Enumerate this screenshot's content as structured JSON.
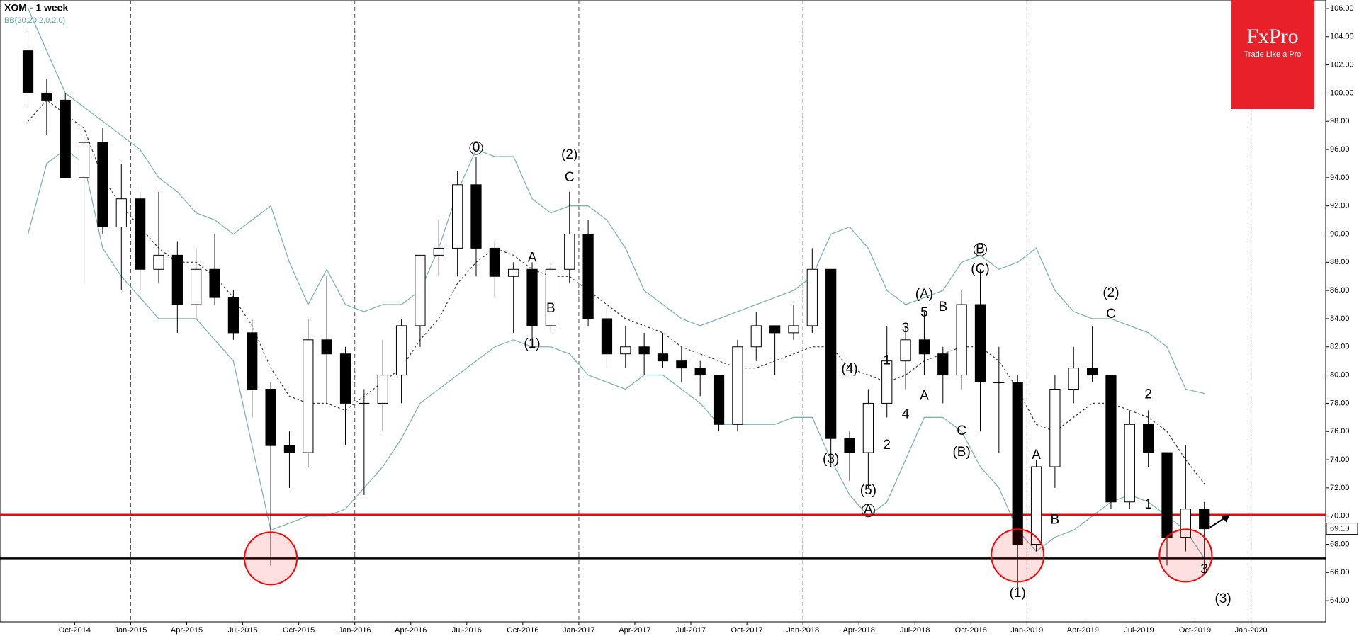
{
  "chart_data": {
    "type": "candlestick",
    "title": "XOM  - 1 week",
    "indicator_label": "BB(20,20,2,0,2,0)",
    "logo": {
      "brand": "FxPro",
      "tagline": "Trade Like a Pro"
    },
    "x": [
      "2014-07",
      "2014-08",
      "2014-09",
      "2014-10",
      "2014-11",
      "2014-12",
      "2015-01",
      "2015-02",
      "2015-03",
      "2015-04",
      "2015-05",
      "2015-06",
      "2015-07",
      "2015-08",
      "2015-09",
      "2015-10",
      "2015-11",
      "2015-12",
      "2016-01",
      "2016-02",
      "2016-03",
      "2016-04",
      "2016-05",
      "2016-06",
      "2016-07",
      "2016-08",
      "2016-09",
      "2016-10",
      "2016-11",
      "2016-12",
      "2017-01",
      "2017-02",
      "2017-03",
      "2017-04",
      "2017-05",
      "2017-06",
      "2017-07",
      "2017-08",
      "2017-09",
      "2017-10",
      "2017-11",
      "2017-12",
      "2018-01",
      "2018-02",
      "2018-03",
      "2018-04",
      "2018-05",
      "2018-06",
      "2018-07",
      "2018-08",
      "2018-09",
      "2018-10",
      "2018-11",
      "2018-12",
      "2019-01",
      "2019-02",
      "2019-03",
      "2019-04",
      "2019-05",
      "2019-06",
      "2019-07",
      "2019-08",
      "2019-09",
      "2019-10"
    ],
    "open": [
      103,
      100,
      99.5,
      94,
      96.5,
      90.5,
      92.5,
      87.5,
      88.5,
      85,
      87.5,
      85.5,
      83,
      79,
      75,
      74.5,
      82.5,
      81.5,
      78,
      78,
      80,
      83.5,
      88.5,
      89,
      93.5,
      89,
      87,
      87.5,
      83.5,
      87.5,
      90,
      84,
      81.5,
      82,
      81.5,
      81,
      80.5,
      80,
      76.5,
      82,
      83.5,
      83,
      83.5,
      87.5,
      75.5,
      74.5,
      78,
      81,
      82.5,
      81.5,
      80,
      85,
      79.5,
      79.5,
      68,
      73.5,
      79,
      80.5,
      80,
      71,
      76.5,
      74.5,
      68.5,
      70.5
    ],
    "high": [
      104.5,
      101,
      100,
      97,
      97.5,
      95,
      93,
      93,
      89.5,
      89,
      90,
      86,
      84,
      79.5,
      76,
      84,
      87,
      82,
      79,
      82.5,
      84,
      88.5,
      91,
      94.5,
      95.5,
      89.5,
      88,
      88,
      88,
      93,
      91,
      85,
      83.5,
      83,
      83,
      82,
      81,
      80,
      82.5,
      84.5,
      83.5,
      85,
      89,
      87.5,
      76,
      79,
      83.5,
      83.5,
      84.5,
      82,
      86,
      87.5,
      82,
      80,
      74,
      80,
      82,
      83.5,
      80,
      77.5,
      77.5,
      74.5,
      75,
      71
    ],
    "low": [
      99,
      97,
      94,
      86.5,
      90,
      86,
      86,
      86.5,
      83,
      84,
      85,
      82.5,
      77,
      66.5,
      72,
      73.5,
      78,
      75,
      71.5,
      76,
      78,
      82,
      87,
      87,
      87,
      85.5,
      83,
      82.5,
      83,
      86.5,
      83.5,
      80.5,
      80.5,
      80,
      80.5,
      79.5,
      78.5,
      76,
      76,
      81,
      80,
      82.5,
      83,
      73.5,
      72.5,
      72,
      77,
      79,
      80,
      78,
      79,
      76,
      74.5,
      64.5,
      67.5,
      72,
      78,
      79.5,
      70.5,
      70.5,
      73.5,
      66.5,
      67.5,
      66
    ],
    "close": [
      100,
      99.5,
      94,
      96.5,
      90.5,
      92.5,
      87.5,
      88.5,
      85,
      87.5,
      85.5,
      83,
      79,
      75,
      74.5,
      82.5,
      81.5,
      78,
      78,
      80,
      83.5,
      88.5,
      89,
      93.5,
      89,
      87,
      87.5,
      83.5,
      87.5,
      90,
      84,
      81.5,
      82,
      81.5,
      81,
      80.5,
      80,
      76.5,
      82,
      83.5,
      83,
      83.5,
      87.5,
      75.5,
      74.5,
      78,
      81,
      82.5,
      81.5,
      80,
      85,
      79.5,
      79.5,
      68,
      73.5,
      79,
      80.5,
      80,
      71,
      76.5,
      74.5,
      68.5,
      70.5,
      69.1
    ],
    "up_color": "#ffffff",
    "down_color": "#000000",
    "bands": {
      "color": "#7fb3b3",
      "upper": [
        106,
        103,
        100,
        99,
        98,
        97,
        96,
        94,
        93,
        91.5,
        91,
        90,
        91,
        92,
        88,
        85,
        87.5,
        85,
        84.5,
        85,
        85,
        86,
        89,
        93,
        96,
        95.5,
        95.5,
        92.5,
        91.5,
        92,
        92,
        91,
        89,
        86,
        85,
        84,
        83.5,
        84,
        84.5,
        85,
        85.5,
        86,
        87,
        90,
        90.5,
        89,
        86,
        85,
        85.5,
        86,
        88,
        88.5,
        87.5,
        88,
        89,
        86,
        84.5,
        84,
        84,
        83.5,
        83,
        82,
        79,
        78.7
      ],
      "middle": [
        98,
        99.5,
        98.5,
        97.5,
        94,
        92,
        90.5,
        89,
        88,
        88,
        87,
        85.5,
        83.5,
        80.5,
        78.5,
        78,
        78,
        77.5,
        78.5,
        79.5,
        80.5,
        82.5,
        84,
        86.5,
        88,
        89,
        88.5,
        87.5,
        87,
        87,
        86,
        85,
        84,
        83.5,
        83,
        82,
        81.5,
        81,
        80.5,
        80.5,
        81,
        81.5,
        82,
        82,
        80.5,
        80,
        79.5,
        80,
        81,
        81.5,
        82,
        82,
        81,
        79,
        76.5,
        76,
        77,
        78,
        78,
        77.5,
        77,
        76,
        74,
        72.3
      ],
      "lower": [
        90,
        95,
        96,
        95,
        89,
        87,
        85.5,
        84,
        84,
        84,
        82.5,
        81,
        75,
        69,
        69.5,
        70,
        70,
        70.5,
        72,
        73.5,
        75.5,
        78,
        79,
        80,
        81,
        82,
        82.5,
        82,
        82,
        81.5,
        80,
        79.5,
        79,
        80,
        80,
        79,
        78,
        76.5,
        76.5,
        76.5,
        76.5,
        77,
        77,
        74,
        71.5,
        70,
        71,
        74,
        77,
        77,
        76,
        73.5,
        72,
        69,
        67.5,
        68.5,
        69,
        70,
        71,
        71.5,
        71,
        70,
        69,
        67
      ]
    },
    "levels": [
      {
        "value": 70.1,
        "color": "#ff0000"
      },
      {
        "value": 67,
        "color": "#000000"
      }
    ],
    "highlights": [
      {
        "x": "2015-08",
        "y": 67
      },
      {
        "x": "2018-12",
        "y": 67.2
      },
      {
        "x": "2019-09",
        "y": 67.2
      }
    ],
    "last_price": {
      "value": 69.1,
      "label": "69.10"
    },
    "annotations": [
      {
        "text": "0",
        "x": "2016-07",
        "y": 96.1,
        "circled": true
      },
      {
        "text": "(2)",
        "x": "2016-12",
        "y": 95.6
      },
      {
        "text": "C",
        "x": "2016-12",
        "y": 94
      },
      {
        "text": "A",
        "x": "2016-10",
        "y": 88.3
      },
      {
        "text": "B",
        "x": "2016-11",
        "y": 84.7
      },
      {
        "text": "(1)",
        "x": "2016-10",
        "y": 82.2
      },
      {
        "text": "(3)",
        "x": "2018-02",
        "y": 74
      },
      {
        "text": "(4)",
        "x": "2018-03",
        "y": 80.4
      },
      {
        "text": "(5)",
        "x": "2018-04",
        "y": 71.8
      },
      {
        "text": "A",
        "x": "2018-04",
        "y": 70.4,
        "circled": true
      },
      {
        "text": "1",
        "x": "2018-05",
        "y": 81
      },
      {
        "text": "2",
        "x": "2018-05",
        "y": 75
      },
      {
        "text": "3",
        "x": "2018-06",
        "y": 83.3
      },
      {
        "text": "4",
        "x": "2018-06",
        "y": 77.2
      },
      {
        "text": "5",
        "x": "2018-07",
        "y": 84.4
      },
      {
        "text": "(A)",
        "x": "2018-07",
        "y": 85.7
      },
      {
        "text": "A",
        "x": "2018-07",
        "y": 78.5
      },
      {
        "text": "B",
        "x": "2018-08",
        "y": 84.8
      },
      {
        "text": "C",
        "x": "2018-09",
        "y": 76
      },
      {
        "text": "(B)",
        "x": "2018-09",
        "y": 74.5
      },
      {
        "text": "B",
        "x": "2018-10",
        "y": 88.9,
        "circled": true
      },
      {
        "text": "(C)",
        "x": "2018-10",
        "y": 87.5
      },
      {
        "text": "A",
        "x": "2019-01",
        "y": 74.3
      },
      {
        "text": "B",
        "x": "2019-02",
        "y": 69.7
      },
      {
        "text": "(1)",
        "x": "2018-12",
        "y": 64.5
      },
      {
        "text": "(2)",
        "x": "2019-05",
        "y": 85.8
      },
      {
        "text": "C",
        "x": "2019-05",
        "y": 84.3
      },
      {
        "text": "2",
        "x": "2019-07",
        "y": 78.6
      },
      {
        "text": "1",
        "x": "2019-07",
        "y": 70.8
      },
      {
        "text": "3",
        "x": "2019-10",
        "y": 66.2
      },
      {
        "text": "(3)",
        "x": "2019-11",
        "y": 64.1
      }
    ],
    "xlim": [
      "2014-06",
      "2020-05"
    ],
    "xticks": [
      {
        "value": "2014-10",
        "label": "Oct-2014"
      },
      {
        "value": "2015-01",
        "label": "Jan-2015"
      },
      {
        "value": "2015-04",
        "label": "Apr-2015"
      },
      {
        "value": "2015-07",
        "label": "Jul-2015"
      },
      {
        "value": "2015-10",
        "label": "Oct-2015"
      },
      {
        "value": "2016-01",
        "label": "Jan-2016"
      },
      {
        "value": "2016-04",
        "label": "Apr-2016"
      },
      {
        "value": "2016-07",
        "label": "Jul-2016"
      },
      {
        "value": "2016-10",
        "label": "Oct-2016"
      },
      {
        "value": "2017-01",
        "label": "Jan-2017"
      },
      {
        "value": "2017-04",
        "label": "Apr-2017"
      },
      {
        "value": "2017-07",
        "label": "Jul-2017"
      },
      {
        "value": "2017-10",
        "label": "Oct-2017"
      },
      {
        "value": "2018-01",
        "label": "Jan-2018"
      },
      {
        "value": "2018-04",
        "label": "Apr-2018"
      },
      {
        "value": "2018-07",
        "label": "Jul-2018"
      },
      {
        "value": "2018-10",
        "label": "Oct-2018"
      },
      {
        "value": "2019-01",
        "label": "Jan-2019"
      },
      {
        "value": "2019-04",
        "label": "Apr-2019"
      },
      {
        "value": "2019-07",
        "label": "Jul-2019"
      },
      {
        "value": "2019-10",
        "label": "Oct-2019"
      },
      {
        "value": "2020-01",
        "label": "Jan-2020"
      }
    ],
    "ylim": [
      62.5,
      106.6
    ],
    "yticks": [
      {
        "value": 64,
        "label": "64.00"
      },
      {
        "value": 66,
        "label": "66.00"
      },
      {
        "value": 68,
        "label": "68.00"
      },
      {
        "value": 70,
        "label": "70.00"
      },
      {
        "value": 72,
        "label": "72.00"
      },
      {
        "value": 74,
        "label": "74.00"
      },
      {
        "value": 76,
        "label": "76.00"
      },
      {
        "value": 78,
        "label": "78.00"
      },
      {
        "value": 80,
        "label": "80.00"
      },
      {
        "value": 82,
        "label": "82.00"
      },
      {
        "value": 84,
        "label": "84.00"
      },
      {
        "value": 86,
        "label": "86.00"
      },
      {
        "value": 88,
        "label": "88.00"
      },
      {
        "value": 90,
        "label": "90.00"
      },
      {
        "value": 92,
        "label": "92.00"
      },
      {
        "value": 94,
        "label": "94.00"
      },
      {
        "value": 96,
        "label": "96.00"
      },
      {
        "value": 98,
        "label": "98.00"
      },
      {
        "value": 100,
        "label": "100.00"
      },
      {
        "value": 102,
        "label": "102.00"
      },
      {
        "value": 104,
        "label": "104.00"
      },
      {
        "value": 106,
        "label": "106.00"
      }
    ]
  }
}
